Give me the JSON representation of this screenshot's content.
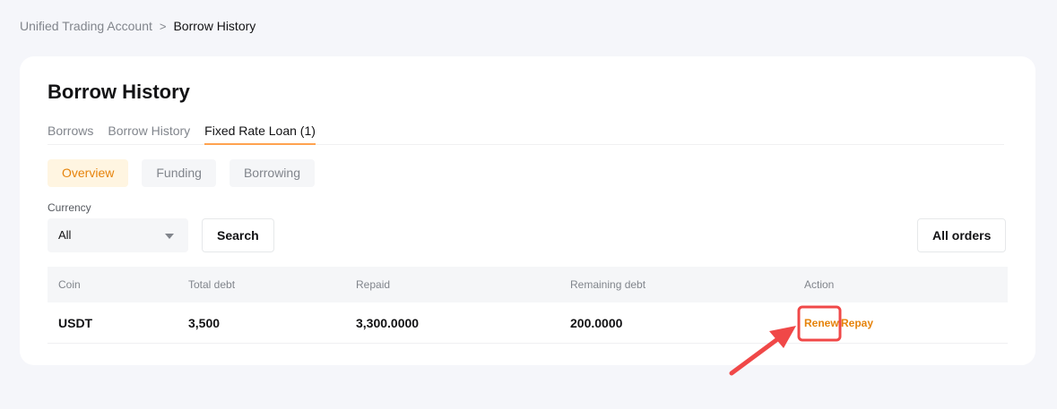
{
  "breadcrumb": {
    "parent": "Unified Trading Account",
    "separator": ">",
    "current": "Borrow History"
  },
  "page_title": "Borrow History",
  "tabs": [
    {
      "label": "Borrows"
    },
    {
      "label": "Borrow History"
    },
    {
      "label": "Fixed Rate Loan (1)",
      "active": true
    }
  ],
  "subtabs": [
    {
      "label": "Overview",
      "active": true
    },
    {
      "label": "Funding"
    },
    {
      "label": "Borrowing"
    }
  ],
  "filter": {
    "currency_label": "Currency",
    "currency_value": "All",
    "search_label": "Search",
    "all_orders_label": "All orders"
  },
  "table": {
    "columns": [
      "Coin",
      "Total debt",
      "Repaid",
      "Remaining debt",
      "Action"
    ],
    "rows": [
      {
        "coin": "USDT",
        "total_debt": "3,500",
        "repaid": "3,300.0000",
        "remaining_debt": "200.0000",
        "actions": [
          "Renew",
          "Repay"
        ]
      }
    ]
  },
  "colors": {
    "accent": "#e6830b",
    "annotation": "#f04848"
  }
}
